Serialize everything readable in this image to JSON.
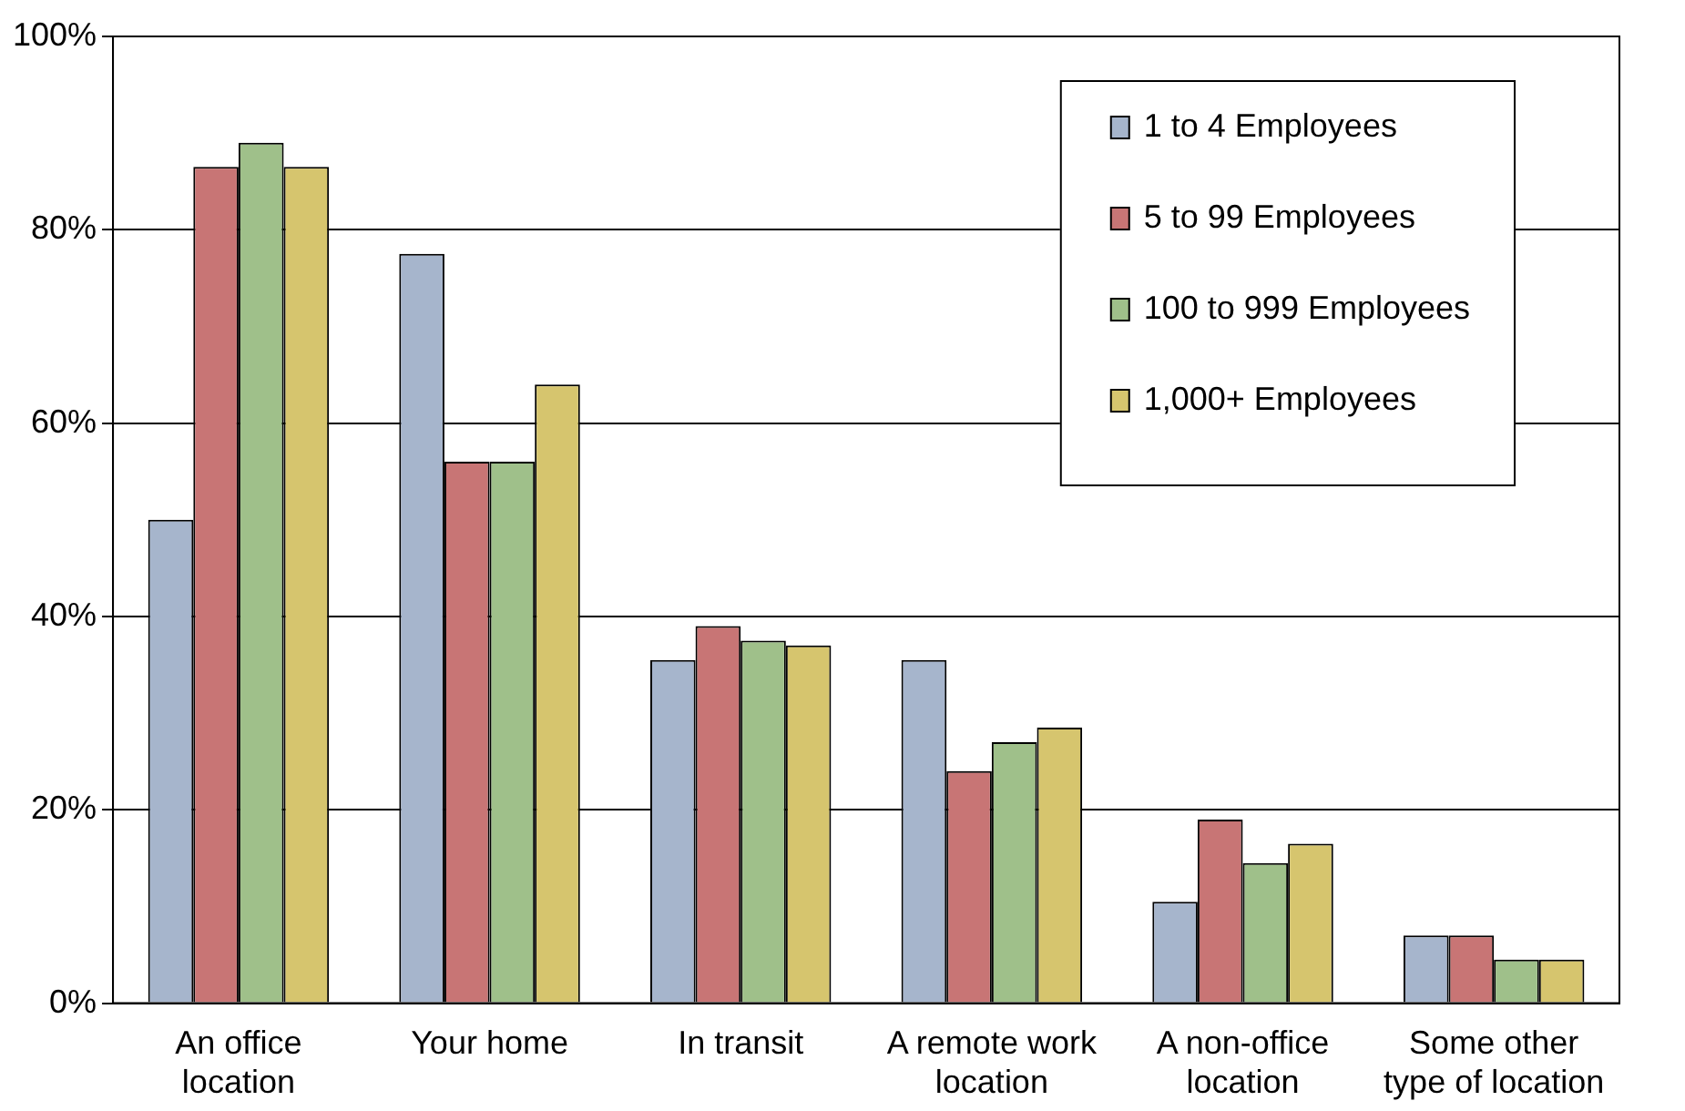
{
  "chart_data": {
    "type": "bar",
    "categories": [
      "An office location",
      "Your home",
      "In transit",
      "A remote work location",
      "A non-office location",
      "Some other type of location"
    ],
    "series": [
      {
        "name": "1 to 4 Employees",
        "color": "#a6b5cc",
        "values": [
          50,
          77.5,
          35.5,
          35.5,
          10.5,
          7
        ]
      },
      {
        "name": "5 to 99 Employees",
        "color": "#c87575",
        "values": [
          86.5,
          56,
          39,
          24,
          19,
          7
        ]
      },
      {
        "name": "100 to 999 Employees",
        "color": "#9fc08a",
        "values": [
          89,
          56,
          37.5,
          27,
          14.5,
          4.5
        ]
      },
      {
        "name": "1,000+ Employees",
        "color": "#d6c56e",
        "values": [
          86.5,
          64,
          37,
          28.5,
          16.5,
          4.5
        ]
      }
    ],
    "ylim": [
      0,
      100
    ],
    "yticks": [
      {
        "value": 0,
        "label": "0%"
      },
      {
        "value": 20,
        "label": "20%"
      },
      {
        "value": 40,
        "label": "40%"
      },
      {
        "value": 60,
        "label": "60%"
      },
      {
        "value": 80,
        "label": "80%"
      },
      {
        "value": 100,
        "label": "100%"
      }
    ],
    "grid": "y",
    "legend": "top right"
  }
}
